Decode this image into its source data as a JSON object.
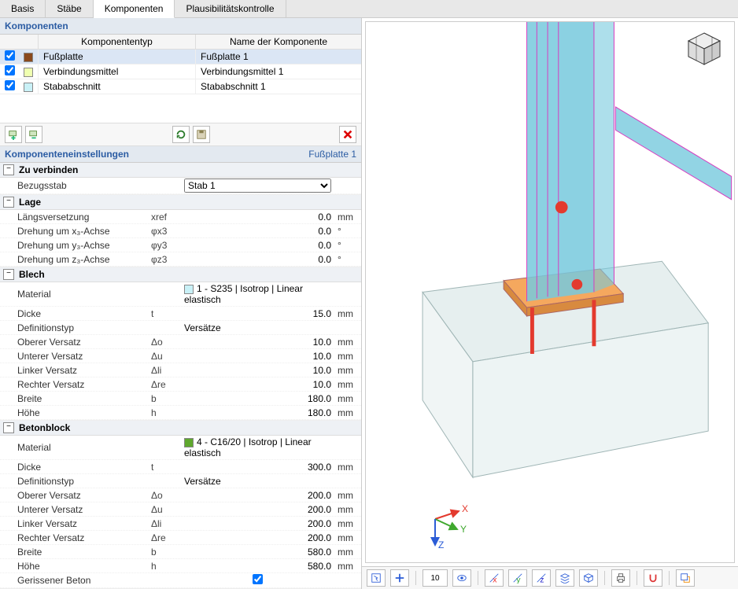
{
  "tabs": [
    "Basis",
    "Stäbe",
    "Komponenten",
    "Plausibilitätskontrolle"
  ],
  "activeTab": 2,
  "componentsPanel": {
    "title": "Komponenten",
    "cols": {
      "type": "Komponententyp",
      "name": "Name der Komponente"
    },
    "rows": [
      {
        "checked": true,
        "color": "#8a4a1e",
        "type": "Fußplatte",
        "name": "Fußplatte 1",
        "selected": true
      },
      {
        "checked": true,
        "color": "#efffb0",
        "type": "Verbindungsmittel",
        "name": "Verbindungsmittel 1",
        "selected": false
      },
      {
        "checked": true,
        "color": "#c9f1f7",
        "type": "Stababschnitt",
        "name": "Stababschnitt 1",
        "selected": false
      }
    ]
  },
  "settingsPanel": {
    "title": "Komponenteneinstellungen",
    "subtitle": "Fußplatte 1",
    "sections": [
      {
        "title": "Zu verbinden",
        "rows": [
          {
            "label": "Bezugsstab",
            "select": true,
            "value": "Stab 1"
          }
        ]
      },
      {
        "title": "Lage",
        "rows": [
          {
            "label": "Längsversetzung",
            "symbol": "xref",
            "value": "0.0",
            "unit": "mm"
          },
          {
            "label": "Drehung um x₃-Achse",
            "symbol": "φx3",
            "value": "0.0",
            "unit": "°"
          },
          {
            "label": "Drehung um y₃-Achse",
            "symbol": "φy3",
            "value": "0.0",
            "unit": "°"
          },
          {
            "label": "Drehung um z₃-Achse",
            "symbol": "φz3",
            "value": "0.0",
            "unit": "°"
          }
        ]
      },
      {
        "title": "Blech",
        "rows": [
          {
            "label": "Material",
            "swatch": "#c9f1f7",
            "text": "1 - S235 | Isotrop | Linear elastisch"
          },
          {
            "label": "Dicke",
            "symbol": "t",
            "value": "15.0",
            "unit": "mm"
          },
          {
            "label": "Definitionstyp",
            "text": "Versätze"
          },
          {
            "label": "Oberer Versatz",
            "symbol": "Δo",
            "value": "10.0",
            "unit": "mm"
          },
          {
            "label": "Unterer Versatz",
            "symbol": "Δu",
            "value": "10.0",
            "unit": "mm"
          },
          {
            "label": "Linker Versatz",
            "symbol": "Δli",
            "value": "10.0",
            "unit": "mm"
          },
          {
            "label": "Rechter Versatz",
            "symbol": "Δre",
            "value": "10.0",
            "unit": "mm"
          },
          {
            "label": "Breite",
            "symbol": "b",
            "value": "180.0",
            "unit": "mm"
          },
          {
            "label": "Höhe",
            "symbol": "h",
            "value": "180.0",
            "unit": "mm"
          }
        ]
      },
      {
        "title": "Betonblock",
        "rows": [
          {
            "label": "Material",
            "swatch": "#5fa82e",
            "text": "4 - C16/20 | Isotrop | Linear elastisch"
          },
          {
            "label": "Dicke",
            "symbol": "t",
            "value": "300.0",
            "unit": "mm"
          },
          {
            "label": "Definitionstyp",
            "text": "Versätze"
          },
          {
            "label": "Oberer Versatz",
            "symbol": "Δo",
            "value": "200.0",
            "unit": "mm"
          },
          {
            "label": "Unterer Versatz",
            "symbol": "Δu",
            "value": "200.0",
            "unit": "mm"
          },
          {
            "label": "Linker Versatz",
            "symbol": "Δli",
            "value": "200.0",
            "unit": "mm"
          },
          {
            "label": "Rechter Versatz",
            "symbol": "Δre",
            "value": "200.0",
            "unit": "mm"
          },
          {
            "label": "Breite",
            "symbol": "b",
            "value": "580.0",
            "unit": "mm"
          },
          {
            "label": "Höhe",
            "symbol": "h",
            "value": "580.0",
            "unit": "mm"
          },
          {
            "label": "Gerissener Beton",
            "checkbox": true,
            "checked": true
          }
        ]
      }
    ]
  },
  "viewport": {
    "colors": {
      "column": "#77c9dd",
      "columnOutline": "#d63cc0",
      "brace": "#77c9dd",
      "plateTop": "#f5a85e",
      "plateSide": "#d88a3f",
      "blockFill": "#e6efef",
      "blockStroke": "#9fb5b5",
      "anchor": "#e33a2e",
      "sphere": "#e33a2e"
    },
    "axes": {
      "x": "#e33a2e",
      "y": "#3fa82e",
      "z": "#2b5cd6",
      "labels": [
        "X",
        "Y",
        "Z"
      ]
    }
  },
  "bottomToolbar": {
    "zoomLabel": "10"
  }
}
